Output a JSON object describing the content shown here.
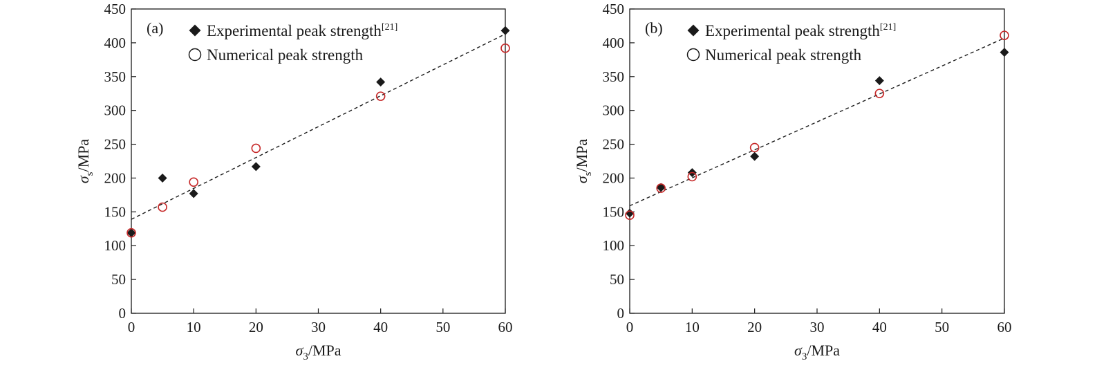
{
  "chart_data": [
    {
      "type": "scatter",
      "panel_label": "(a)",
      "xlabel": {
        "symbol": "σ",
        "sub": "3",
        "unit": "/MPa"
      },
      "ylabel": {
        "symbol": "σ",
        "sub": "s",
        "unit": "/MPa"
      },
      "xlim": [
        0,
        60
      ],
      "ylim": [
        0,
        450
      ],
      "xticks": [
        0,
        10,
        20,
        30,
        40,
        50,
        60
      ],
      "yticks": [
        0,
        50,
        100,
        150,
        200,
        250,
        300,
        350,
        400,
        450
      ],
      "legend_position": "top-left",
      "series": [
        {
          "name": "Experimental peak strength",
          "name_sup": "[21]",
          "marker": "filled-diamond",
          "color": "#1a1a1a",
          "x": [
            0,
            5,
            10,
            20,
            40,
            60
          ],
          "y": [
            119,
            200,
            177,
            217,
            342,
            418
          ]
        },
        {
          "name": "Numerical peak strength",
          "marker": "open-circle",
          "color": "#c62828",
          "x": [
            0,
            5,
            10,
            20,
            40,
            60
          ],
          "y": [
            119,
            157,
            194,
            244,
            321,
            392
          ]
        }
      ],
      "fit_line": {
        "style": "dashed",
        "color": "#1a1a1a",
        "x": [
          0,
          60
        ],
        "y": [
          139,
          413
        ]
      }
    },
    {
      "type": "scatter",
      "panel_label": "(b)",
      "xlabel": {
        "symbol": "σ",
        "sub": "3",
        "unit": "/MPa"
      },
      "ylabel": {
        "symbol": "σ",
        "sub": "s",
        "unit": "/MPa"
      },
      "xlim": [
        0,
        60
      ],
      "ylim": [
        0,
        450
      ],
      "xticks": [
        0,
        10,
        20,
        30,
        40,
        50,
        60
      ],
      "yticks": [
        0,
        50,
        100,
        150,
        200,
        250,
        300,
        350,
        400,
        450
      ],
      "legend_position": "top-left",
      "series": [
        {
          "name": "Experimental peak strength",
          "name_sup": "[21]",
          "marker": "filled-diamond",
          "color": "#1a1a1a",
          "x": [
            0,
            5,
            10,
            20,
            40,
            60
          ],
          "y": [
            148,
            186,
            208,
            232,
            344,
            386
          ]
        },
        {
          "name": "Numerical peak strength",
          "marker": "open-circle",
          "color": "#c62828",
          "x": [
            0,
            5,
            10,
            20,
            40,
            60
          ],
          "y": [
            145,
            185,
            202,
            245,
            325,
            411
          ]
        }
      ],
      "fit_line": {
        "style": "dashed",
        "color": "#1a1a1a",
        "x": [
          0,
          60
        ],
        "y": [
          159,
          407
        ]
      }
    }
  ]
}
